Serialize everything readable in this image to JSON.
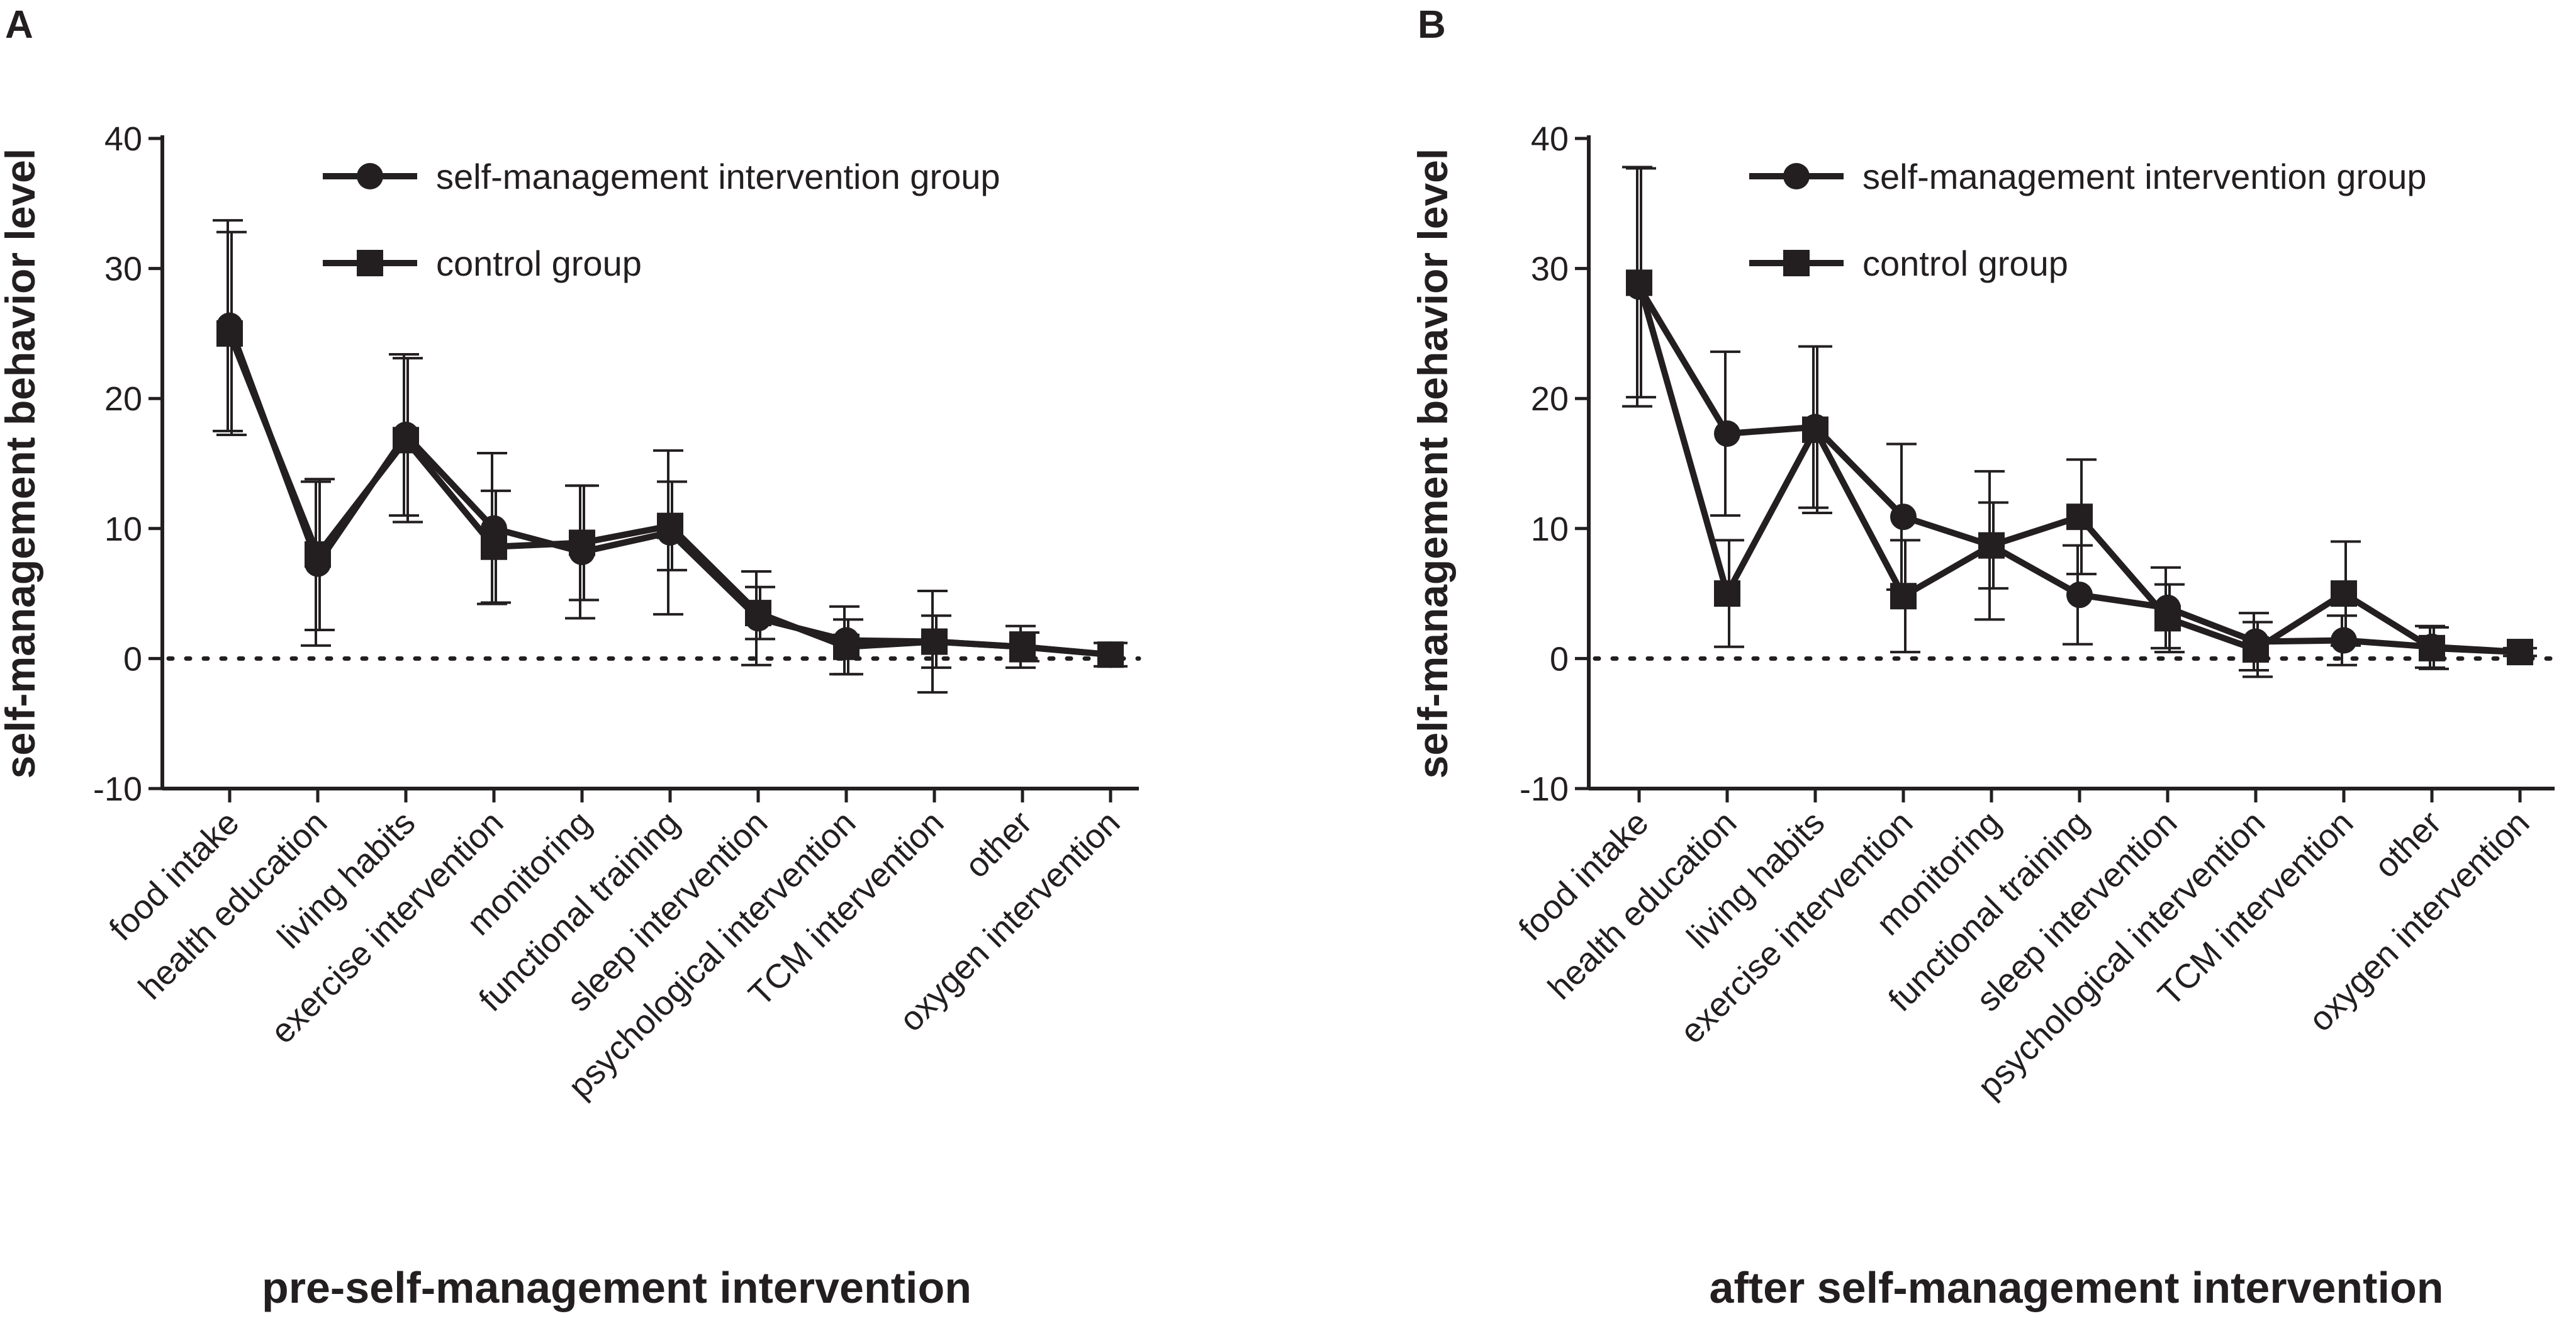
{
  "colors": {
    "ink": "#231f20",
    "background": "#ffffff"
  },
  "chart_data": [
    {
      "panel": "A",
      "type": "line",
      "xlabel": "pre-self-management intervention",
      "ylabel": "self-management behavior level",
      "ylim": [
        -10,
        40
      ],
      "yticks": [
        -10,
        0,
        10,
        20,
        30,
        40
      ],
      "reference_line": 0,
      "legend_position": "top-right",
      "categories": [
        "food intake",
        "health education",
        "living habits",
        "exercise intervention",
        "monitoring",
        "functional training",
        "sleep intervention",
        "psychological intervention",
        "TCM intervention",
        "other",
        "oxygen intervention"
      ],
      "series": [
        {
          "name": "self-management intervention group",
          "marker": "circle",
          "values": [
            25.6,
            7.3,
            17.2,
            10.0,
            8.2,
            9.7,
            3.1,
            1.4,
            1.3,
            0.9,
            0.3
          ],
          "errors": [
            8.1,
            6.3,
            6.2,
            5.8,
            5.1,
            6.3,
            3.6,
            2.6,
            3.9,
            1.6,
            0.9
          ]
        },
        {
          "name": "control group",
          "marker": "square",
          "values": [
            25.0,
            8.0,
            16.8,
            8.6,
            8.9,
            10.2,
            3.5,
            0.9,
            1.3,
            0.9,
            0.3
          ],
          "errors": [
            7.8,
            5.8,
            6.3,
            4.3,
            4.4,
            3.4,
            2.0,
            2.1,
            2.0,
            1.1,
            0.9
          ]
        }
      ]
    },
    {
      "panel": "B",
      "type": "line",
      "xlabel": "after self-management intervention",
      "ylabel": "self-management behavior level",
      "ylim": [
        -10,
        40
      ],
      "yticks": [
        -10,
        0,
        10,
        20,
        30,
        40
      ],
      "reference_line": 0,
      "legend_position": "top-right",
      "categories": [
        "food intake",
        "health education",
        "living habits",
        "exercise intervention",
        "monitoring",
        "functional training",
        "sleep intervention",
        "psychological intervention",
        "TCM intervention",
        "other",
        "oxygen intervention"
      ],
      "series": [
        {
          "name": "self-management intervention group",
          "marker": "circle",
          "values": [
            28.6,
            17.3,
            17.8,
            10.9,
            8.7,
            4.9,
            3.9,
            1.3,
            1.4,
            0.9,
            0.5
          ],
          "errors": [
            9.2,
            6.3,
            6.2,
            5.6,
            5.7,
            3.8,
            3.1,
            2.2,
            1.9,
            1.6,
            0.3
          ]
        },
        {
          "name": "control group",
          "marker": "square",
          "values": [
            28.9,
            5.0,
            17.6,
            4.8,
            8.7,
            10.9,
            3.1,
            0.7,
            5.0,
            0.8,
            0.5
          ],
          "errors": [
            8.8,
            4.1,
            6.4,
            4.3,
            3.3,
            4.4,
            2.6,
            2.1,
            4.0,
            1.6,
            0.3
          ]
        }
      ]
    }
  ]
}
